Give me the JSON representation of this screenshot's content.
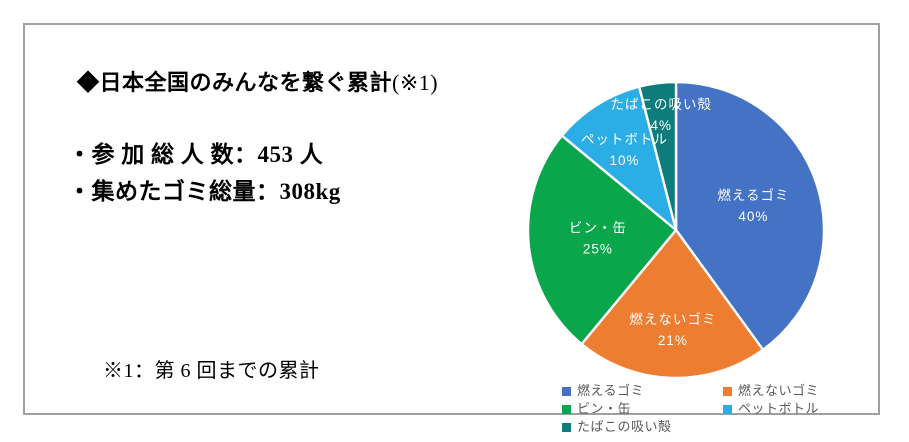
{
  "panel": {
    "title_main": "◆日本全国のみんなを繋ぐ累計",
    "title_suffix": "(※1)",
    "stats": [
      "・参 加 総 人 数：453 人",
      "・集めたゴミ総量：308kg"
    ],
    "footnote": "※1：第 6 回までの累計"
  },
  "chart_data": {
    "type": "pie",
    "title": "",
    "categories": [
      "燃えるゴミ",
      "燃えないゴミ",
      "ビン・缶",
      "ペットボトル",
      "たばこの吸い殻"
    ],
    "values": [
      40,
      21,
      25,
      10,
      4
    ],
    "unit": "%",
    "colors": [
      "#4472C4",
      "#ED7D31",
      "#0AA64B",
      "#2BAEE5",
      "#0E7C7B"
    ],
    "start_angle_deg": 0,
    "direction": "clockwise",
    "slice_border_color": "#FFFFFF",
    "data_label_style": "category name + percent, white, inside slice",
    "label_text_color": "#FFFFFF",
    "label_radius_factors": [
      0.55,
      0.67,
      0.53,
      0.65,
      0.79
    ],
    "legend_position": "bottom, two columns",
    "legend_text_color": "#595959"
  }
}
